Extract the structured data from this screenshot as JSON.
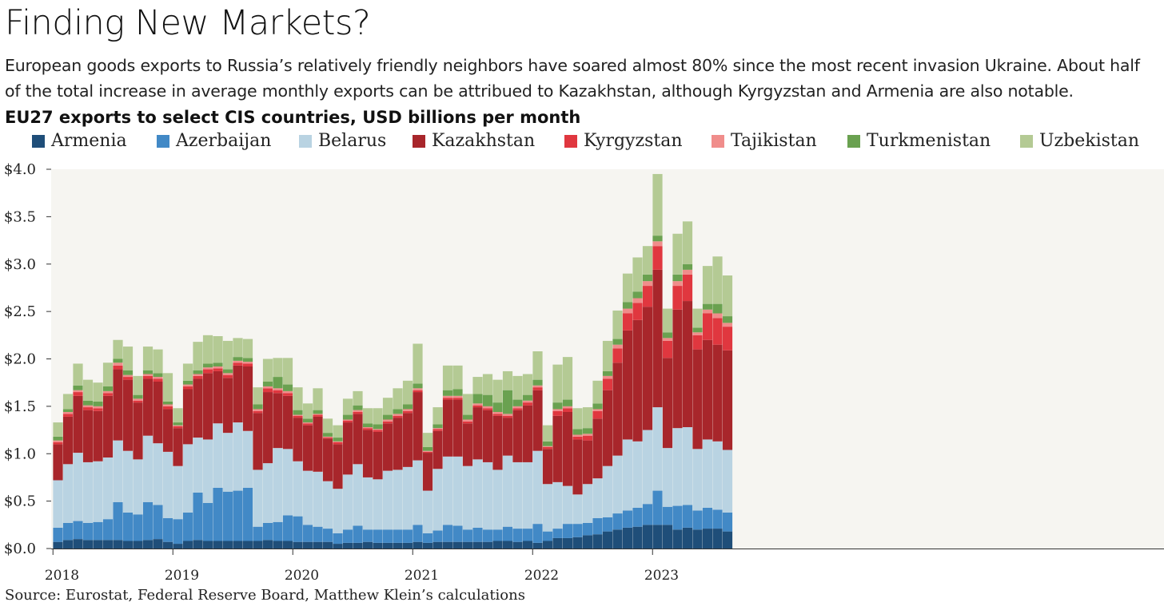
{
  "header": {
    "title": "Finding New Markets?",
    "subtitle": "European goods exports to Russia’s relatively friendly neighbors have soared almost 80% since the most recent invasion Ukraine. About half of the total increase in average monthly exports can be attribued to Kazakhstan, although Kyrgyzstan and Armenia are also notable.",
    "source": "Source: Eurostat, Federal Reserve Board, Matthew Klein’s calculations"
  },
  "chart_data": {
    "type": "bar",
    "stacked": true,
    "title": "EU27 exports to select CIS countries, USD billions per month",
    "xlabel": "",
    "ylabel": "",
    "ylim": [
      0,
      4.0
    ],
    "y_ticks": [
      "$0.0",
      "$0.5",
      "$1.0",
      "$1.5",
      "$2.0",
      "$2.5",
      "$3.0",
      "$3.5",
      "$4.0"
    ],
    "y_tick_values": [
      0,
      0.5,
      1.0,
      1.5,
      2.0,
      2.5,
      3.0,
      3.5,
      4.0
    ],
    "x_ticks": [
      "2018",
      "2019",
      "2020",
      "2021",
      "2022",
      "2023"
    ],
    "legend_placement": "top",
    "grid": false,
    "background_color": "#f6f5f1",
    "categories": [
      "2018-01",
      "2018-02",
      "2018-03",
      "2018-04",
      "2018-05",
      "2018-06",
      "2018-07",
      "2018-08",
      "2018-09",
      "2018-10",
      "2018-11",
      "2018-12",
      "2019-01",
      "2019-02",
      "2019-03",
      "2019-04",
      "2019-05",
      "2019-06",
      "2019-07",
      "2019-08",
      "2019-09",
      "2019-10",
      "2019-11",
      "2019-12",
      "2020-01",
      "2020-02",
      "2020-03",
      "2020-04",
      "2020-05",
      "2020-06",
      "2020-07",
      "2020-08",
      "2020-09",
      "2020-10",
      "2020-11",
      "2020-12",
      "2021-01",
      "2021-02",
      "2021-03",
      "2021-04",
      "2021-05",
      "2021-06",
      "2021-07",
      "2021-08",
      "2021-09",
      "2021-10",
      "2021-11",
      "2021-12",
      "2022-01",
      "2022-02",
      "2022-03",
      "2022-04",
      "2022-05",
      "2022-06",
      "2022-07",
      "2022-08",
      "2022-09",
      "2022-10",
      "2022-11",
      "2022-12",
      "2023-01",
      "2023-02",
      "2023-03",
      "2023-04",
      "2023-05",
      "2023-06",
      "2023-07",
      "2023-08"
    ],
    "series": [
      {
        "name": "Armenia",
        "color": "#1f4e79",
        "values": [
          0.07,
          0.09,
          0.1,
          0.09,
          0.09,
          0.09,
          0.09,
          0.08,
          0.08,
          0.09,
          0.1,
          0.07,
          0.05,
          0.08,
          0.09,
          0.08,
          0.08,
          0.08,
          0.08,
          0.08,
          0.08,
          0.09,
          0.08,
          0.08,
          0.07,
          0.07,
          0.07,
          0.07,
          0.05,
          0.06,
          0.06,
          0.07,
          0.06,
          0.06,
          0.06,
          0.06,
          0.07,
          0.06,
          0.07,
          0.07,
          0.07,
          0.07,
          0.07,
          0.07,
          0.08,
          0.08,
          0.07,
          0.08,
          0.06,
          0.08,
          0.11,
          0.11,
          0.12,
          0.14,
          0.15,
          0.18,
          0.2,
          0.22,
          0.23,
          0.25,
          0.25,
          0.25,
          0.2,
          0.22,
          0.2,
          0.21,
          0.21,
          0.18
        ]
      },
      {
        "name": "Azerbaijan",
        "color": "#4289c6",
        "values": [
          0.15,
          0.18,
          0.19,
          0.18,
          0.19,
          0.22,
          0.4,
          0.3,
          0.28,
          0.4,
          0.36,
          0.25,
          0.26,
          0.3,
          0.5,
          0.4,
          0.56,
          0.52,
          0.53,
          0.56,
          0.15,
          0.18,
          0.2,
          0.27,
          0.27,
          0.18,
          0.16,
          0.14,
          0.11,
          0.14,
          0.18,
          0.13,
          0.14,
          0.14,
          0.14,
          0.14,
          0.18,
          0.1,
          0.12,
          0.18,
          0.17,
          0.13,
          0.15,
          0.13,
          0.12,
          0.15,
          0.14,
          0.13,
          0.2,
          0.1,
          0.1,
          0.15,
          0.14,
          0.13,
          0.17,
          0.15,
          0.17,
          0.18,
          0.2,
          0.22,
          0.36,
          0.19,
          0.25,
          0.24,
          0.2,
          0.22,
          0.2,
          0.2
        ]
      },
      {
        "name": "Belarus",
        "color": "#b9d3e2",
        "values": [
          0.5,
          0.62,
          0.72,
          0.64,
          0.64,
          0.65,
          0.65,
          0.65,
          0.58,
          0.7,
          0.65,
          0.7,
          0.56,
          0.72,
          0.58,
          0.67,
          0.68,
          0.62,
          0.72,
          0.6,
          0.6,
          0.63,
          0.78,
          0.7,
          0.58,
          0.57,
          0.58,
          0.5,
          0.47,
          0.58,
          0.65,
          0.55,
          0.53,
          0.62,
          0.63,
          0.66,
          0.68,
          0.45,
          0.65,
          0.72,
          0.73,
          0.67,
          0.72,
          0.71,
          0.63,
          0.75,
          0.7,
          0.7,
          0.77,
          0.5,
          0.49,
          0.4,
          0.31,
          0.41,
          0.42,
          0.54,
          0.61,
          0.75,
          0.7,
          0.78,
          0.88,
          0.62,
          0.82,
          0.82,
          0.65,
          0.72,
          0.72,
          0.66
        ]
      },
      {
        "name": "Kazakhstan",
        "color": "#a8262b",
        "values": [
          0.38,
          0.5,
          0.6,
          0.55,
          0.53,
          0.65,
          0.75,
          0.75,
          0.6,
          0.6,
          0.65,
          0.45,
          0.4,
          0.58,
          0.62,
          0.7,
          0.55,
          0.58,
          0.6,
          0.68,
          0.6,
          0.75,
          0.58,
          0.56,
          0.46,
          0.48,
          0.58,
          0.45,
          0.47,
          0.55,
          0.53,
          0.5,
          0.5,
          0.5,
          0.55,
          0.57,
          0.72,
          0.4,
          0.4,
          0.6,
          0.6,
          0.45,
          0.55,
          0.55,
          0.57,
          0.4,
          0.55,
          0.6,
          0.64,
          0.37,
          0.7,
          0.78,
          0.58,
          0.46,
          0.63,
          0.8,
          0.98,
          1.15,
          1.28,
          1.3,
          1.45,
          0.95,
          1.25,
          1.33,
          1.05,
          1.05,
          1.02,
          1.05
        ]
      },
      {
        "name": "Kyrgyzstan",
        "color": "#e0373f",
        "values": [
          0.02,
          0.03,
          0.04,
          0.03,
          0.03,
          0.03,
          0.04,
          0.03,
          0.02,
          0.03,
          0.03,
          0.03,
          0.02,
          0.03,
          0.03,
          0.04,
          0.03,
          0.03,
          0.03,
          0.03,
          0.02,
          0.04,
          0.03,
          0.03,
          0.02,
          0.02,
          0.02,
          0.01,
          0.02,
          0.02,
          0.02,
          0.02,
          0.02,
          0.02,
          0.02,
          0.02,
          0.02,
          0.01,
          0.02,
          0.02,
          0.02,
          0.02,
          0.02,
          0.02,
          0.02,
          0.02,
          0.02,
          0.03,
          0.03,
          0.02,
          0.05,
          0.04,
          0.03,
          0.05,
          0.08,
          0.12,
          0.15,
          0.18,
          0.18,
          0.22,
          0.25,
          0.18,
          0.25,
          0.28,
          0.15,
          0.28,
          0.28,
          0.25
        ]
      },
      {
        "name": "Tajikistan",
        "color": "#f08d8b",
        "values": [
          0.02,
          0.02,
          0.02,
          0.02,
          0.02,
          0.02,
          0.03,
          0.02,
          0.02,
          0.02,
          0.02,
          0.02,
          0.01,
          0.02,
          0.02,
          0.02,
          0.02,
          0.02,
          0.02,
          0.02,
          0.02,
          0.02,
          0.02,
          0.02,
          0.01,
          0.01,
          0.01,
          0.01,
          0.01,
          0.01,
          0.02,
          0.01,
          0.01,
          0.02,
          0.02,
          0.02,
          0.02,
          0.01,
          0.01,
          0.02,
          0.02,
          0.02,
          0.02,
          0.02,
          0.02,
          0.02,
          0.02,
          0.02,
          0.02,
          0.01,
          0.02,
          0.02,
          0.02,
          0.02,
          0.02,
          0.03,
          0.04,
          0.05,
          0.05,
          0.05,
          0.05,
          0.03,
          0.05,
          0.05,
          0.03,
          0.04,
          0.05,
          0.04
        ]
      },
      {
        "name": "Turkmenistan",
        "color": "#6aa150",
        "values": [
          0.04,
          0.03,
          0.05,
          0.05,
          0.05,
          0.05,
          0.04,
          0.05,
          0.04,
          0.04,
          0.04,
          0.03,
          0.03,
          0.04,
          0.04,
          0.04,
          0.04,
          0.04,
          0.04,
          0.04,
          0.05,
          0.05,
          0.12,
          0.07,
          0.05,
          0.04,
          0.04,
          0.04,
          0.04,
          0.05,
          0.05,
          0.04,
          0.05,
          0.05,
          0.05,
          0.05,
          0.05,
          0.04,
          0.04,
          0.06,
          0.07,
          0.05,
          0.1,
          0.12,
          0.1,
          0.25,
          0.07,
          0.06,
          0.06,
          0.05,
          0.07,
          0.07,
          0.06,
          0.06,
          0.06,
          0.05,
          0.06,
          0.07,
          0.07,
          0.07,
          0.06,
          0.06,
          0.07,
          0.06,
          0.05,
          0.06,
          0.1,
          0.07
        ]
      },
      {
        "name": "Uzbekistan",
        "color": "#b4ca94",
        "values": [
          0.15,
          0.16,
          0.23,
          0.22,
          0.2,
          0.25,
          0.2,
          0.25,
          0.2,
          0.25,
          0.25,
          0.3,
          0.15,
          0.18,
          0.3,
          0.3,
          0.28,
          0.3,
          0.2,
          0.2,
          0.18,
          0.24,
          0.2,
          0.28,
          0.24,
          0.16,
          0.23,
          0.15,
          0.13,
          0.17,
          0.15,
          0.16,
          0.17,
          0.18,
          0.22,
          0.25,
          0.42,
          0.15,
          0.18,
          0.26,
          0.25,
          0.22,
          0.18,
          0.22,
          0.24,
          0.2,
          0.25,
          0.22,
          0.3,
          0.17,
          0.4,
          0.45,
          0.22,
          0.22,
          0.24,
          0.32,
          0.3,
          0.3,
          0.36,
          0.3,
          0.65,
          0.25,
          0.43,
          0.45,
          0.2,
          0.4,
          0.5,
          0.43
        ]
      }
    ]
  }
}
